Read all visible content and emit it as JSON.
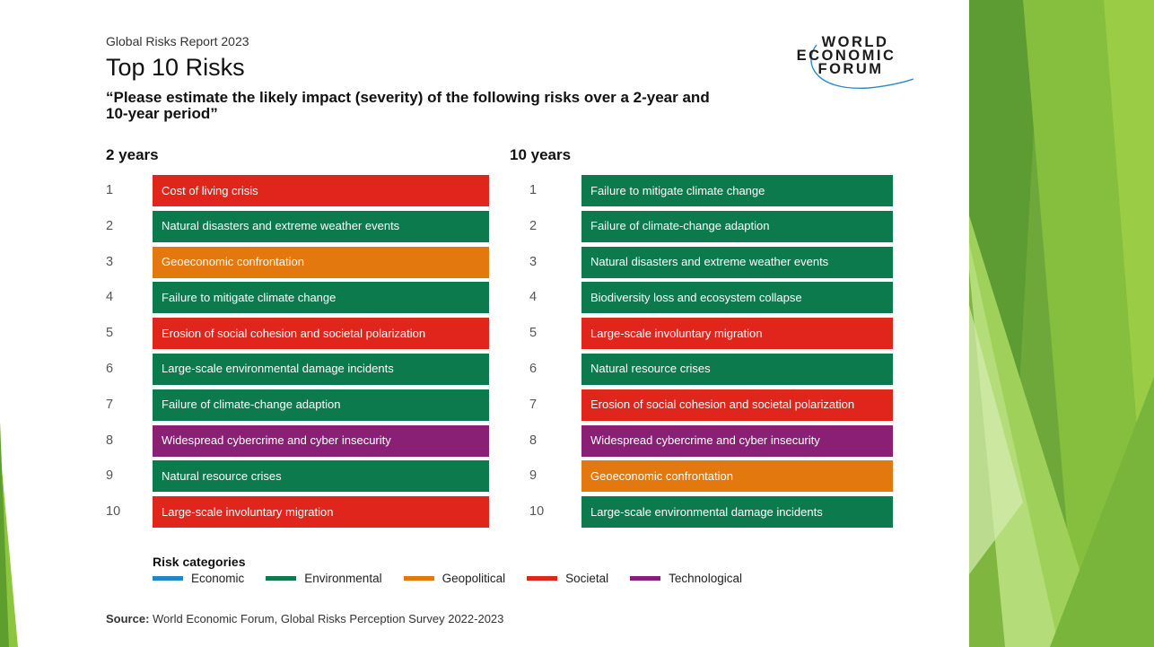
{
  "colors": {
    "economic": "#1e88c8",
    "environmental": "#0d7a4e",
    "geopolitical": "#e3780f",
    "societal": "#e0261c",
    "technological": "#8a1f76"
  },
  "header": {
    "report_label": "Global Risks Report 2023",
    "title": "Top 10 Risks",
    "question": "“Please estimate the likely impact (severity) of the following risks over a 2-year and 10-year period”"
  },
  "logo": {
    "line1": "WORLD",
    "line2": "ECONOMIC",
    "line3": "FORUM"
  },
  "two_year": {
    "heading": "2 years",
    "items": [
      {
        "rank": "1",
        "label": "Cost of living crisis",
        "category": "societal"
      },
      {
        "rank": "2",
        "label": "Natural disasters and extreme weather events",
        "category": "environmental"
      },
      {
        "rank": "3",
        "label": "Geoeconomic confrontation",
        "category": "geopolitical"
      },
      {
        "rank": "4",
        "label": "Failure to mitigate climate change",
        "category": "environmental"
      },
      {
        "rank": "5",
        "label": "Erosion of social cohesion and societal polarization",
        "category": "societal"
      },
      {
        "rank": "6",
        "label": "Large-scale environmental damage incidents",
        "category": "environmental"
      },
      {
        "rank": "7",
        "label": "Failure of climate-change adaption",
        "category": "environmental"
      },
      {
        "rank": "8",
        "label": "Widespread cybercrime and cyber insecurity",
        "category": "technological"
      },
      {
        "rank": "9",
        "label": "Natural resource crises",
        "category": "environmental"
      },
      {
        "rank": "10",
        "label": "Large-scale involuntary migration",
        "category": "societal"
      }
    ]
  },
  "ten_year": {
    "heading": "10 years",
    "items": [
      {
        "rank": "1",
        "label": "Failure to mitigate climate change",
        "category": "environmental"
      },
      {
        "rank": "2",
        "label": "Failure of climate-change adaption",
        "category": "environmental"
      },
      {
        "rank": "3",
        "label": "Natural disasters and extreme weather events",
        "category": "environmental"
      },
      {
        "rank": "4",
        "label": "Biodiversity loss and ecosystem collapse",
        "category": "environmental"
      },
      {
        "rank": "5",
        "label": "Large-scale involuntary migration",
        "category": "societal"
      },
      {
        "rank": "6",
        "label": "Natural resource crises",
        "category": "environmental"
      },
      {
        "rank": "7",
        "label": "Erosion of social cohesion and societal polarization",
        "category": "societal"
      },
      {
        "rank": "8",
        "label": "Widespread cybercrime and cyber insecurity",
        "category": "technological"
      },
      {
        "rank": "9",
        "label": "Geoeconomic confrontation",
        "category": "geopolitical"
      },
      {
        "rank": "10",
        "label": "Large-scale environmental damage incidents",
        "category": "environmental"
      }
    ]
  },
  "legend": {
    "title": "Risk categories",
    "items": [
      {
        "label": "Economic",
        "category": "economic"
      },
      {
        "label": "Environmental",
        "category": "environmental"
      },
      {
        "label": "Geopolitical",
        "category": "geopolitical"
      },
      {
        "label": "Societal",
        "category": "societal"
      },
      {
        "label": "Technological",
        "category": "technological"
      }
    ]
  },
  "source": {
    "prefix": "Source:",
    "text": " World Economic Forum, Global Risks Perception Survey 2022-2023"
  }
}
